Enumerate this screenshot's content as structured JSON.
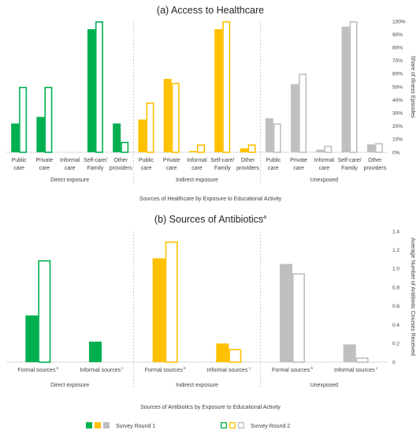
{
  "colors": {
    "round1": "#00b050",
    "round2": "#00b050",
    "indirect": "#ffc000",
    "unexposed": "#bfbfbf"
  },
  "chart_data": [
    {
      "type": "bar",
      "title": "(a) Access to Healthcare",
      "xlabel": "Sources of Healthcare by Exposure to Educational Activity",
      "ylabel": "Share of Illness Episodes",
      "ylim": [
        0,
        100
      ],
      "yticks": [
        "0%",
        "10%",
        "20%",
        "30%",
        "40%",
        "50%",
        "60%",
        "70%",
        "80%",
        "90%",
        "100%"
      ],
      "groups": [
        "Direct exposure",
        "Indirect exposure",
        "Unexposed"
      ],
      "categories": [
        [
          "Public",
          "care"
        ],
        [
          "Private",
          "care"
        ],
        [
          "Informal",
          "care"
        ],
        [
          "Self-care/",
          "Family"
        ],
        [
          "Other",
          "providers"
        ]
      ],
      "series": [
        {
          "name": "Survey Round 1",
          "values": [
            [
              22,
              27,
              0,
              94,
              22
            ],
            [
              25,
              56,
              1,
              94,
              3
            ],
            [
              26,
              52,
              2,
              96,
              6
            ]
          ]
        },
        {
          "name": "Survey Round 2",
          "values": [
            [
              50,
              50,
              0,
              100,
              8
            ],
            [
              38,
              53,
              6,
              100,
              6
            ],
            [
              22,
              60,
              5,
              100,
              7
            ]
          ]
        }
      ]
    },
    {
      "type": "bar",
      "title": "(b) Sources of Antibiotics",
      "title_sup": "a",
      "xlabel": "Sources of Antibiotics by Exposure to Educational Activity",
      "ylabel": "Average Number of Antibiotic Courses Received",
      "ylim": [
        0,
        1.4
      ],
      "yticks": [
        "0",
        "0.2",
        "0.4",
        "0.6",
        "0.8",
        "1.0",
        "1.2",
        "1.4"
      ],
      "groups": [
        "Direct exposure",
        "Indirect exposure",
        "Unexposed"
      ],
      "categories": [
        {
          "label": "Formal sources",
          "sup": "b"
        },
        {
          "label": "Informal sources",
          "sup": "c"
        }
      ],
      "series": [
        {
          "name": "Survey Round 1",
          "values": [
            [
              0.5,
              0.22
            ],
            [
              1.11,
              0.2
            ],
            [
              1.05,
              0.19
            ]
          ]
        },
        {
          "name": "Survey Round 2",
          "values": [
            [
              1.09,
              0
            ],
            [
              1.29,
              0.14
            ],
            [
              0.95,
              0.05
            ]
          ]
        }
      ]
    }
  ],
  "legend": {
    "round1": "Survey Round 1",
    "round2": "Survey Round 2"
  }
}
